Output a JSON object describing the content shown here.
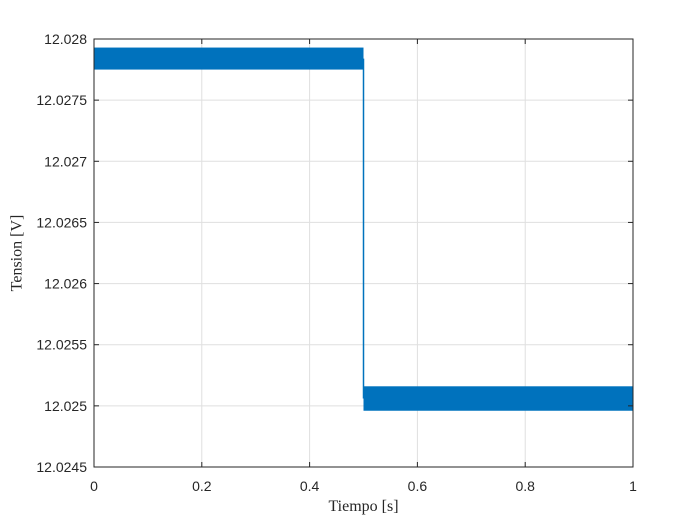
{
  "chart_data": {
    "type": "line",
    "title": "",
    "xlabel": "Tiempo [s]",
    "ylabel": "Tension [V]",
    "xlim": [
      0,
      1
    ],
    "ylim": [
      12.0245,
      12.028
    ],
    "x_ticks": [
      0,
      0.2,
      0.4,
      0.6,
      0.8,
      1
    ],
    "x_tick_labels": [
      "0",
      "0.2",
      "0.4",
      "0.6",
      "0.8",
      "1"
    ],
    "y_ticks": [
      12.0245,
      12.025,
      12.0255,
      12.026,
      12.0265,
      12.027,
      12.0275,
      12.028
    ],
    "y_tick_labels": [
      "12.0245",
      "12.025",
      "12.0255",
      "12.026",
      "12.0265",
      "12.027",
      "12.0275",
      "12.028"
    ],
    "grid": true,
    "series": [
      {
        "color": "#0072bd",
        "description_of_signal": "step with high-frequency ripple band",
        "segments": [
          {
            "x": [
              0,
              0.5
            ],
            "y_low": 12.02775,
            "y_high": 12.02793
          },
          {
            "x": [
              0.5,
              1
            ],
            "y_low": 12.02496,
            "y_high": 12.02516
          }
        ]
      }
    ]
  }
}
